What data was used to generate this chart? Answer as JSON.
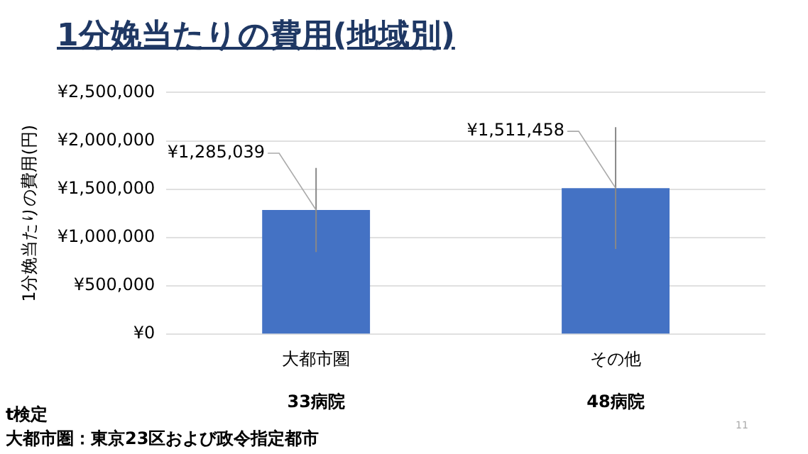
{
  "chart_data": {
    "type": "bar",
    "title": "1分娩当たりの費用(地域別)",
    "ylabel": "1分娩当たりの費用(円)",
    "categories": [
      "大都市圏",
      "その他"
    ],
    "series": [
      {
        "color": "#4472c4",
        "values": [
          1285039,
          1511458
        ],
        "errors": [
          435000,
          630000
        ],
        "value_labels": [
          "¥1,285,039",
          "¥1,511,458"
        ]
      }
    ],
    "ylim": [
      0,
      2500000
    ],
    "yticks": [
      {
        "value": 0,
        "label": "¥0"
      },
      {
        "value": 500000,
        "label": "¥500,000"
      },
      {
        "value": 1000000,
        "label": "¥1,000,000"
      },
      {
        "value": 1500000,
        "label": "¥1,500,000"
      },
      {
        "value": 2000000,
        "label": "¥2,000,000"
      },
      {
        "value": 2500000,
        "label": "¥2,500,000"
      }
    ],
    "grid": "y",
    "legend": false,
    "annotations": [
      "33病院",
      "48病院",
      "t検定",
      "大都市圏：東京23区および政令指定都市",
      "11"
    ]
  }
}
